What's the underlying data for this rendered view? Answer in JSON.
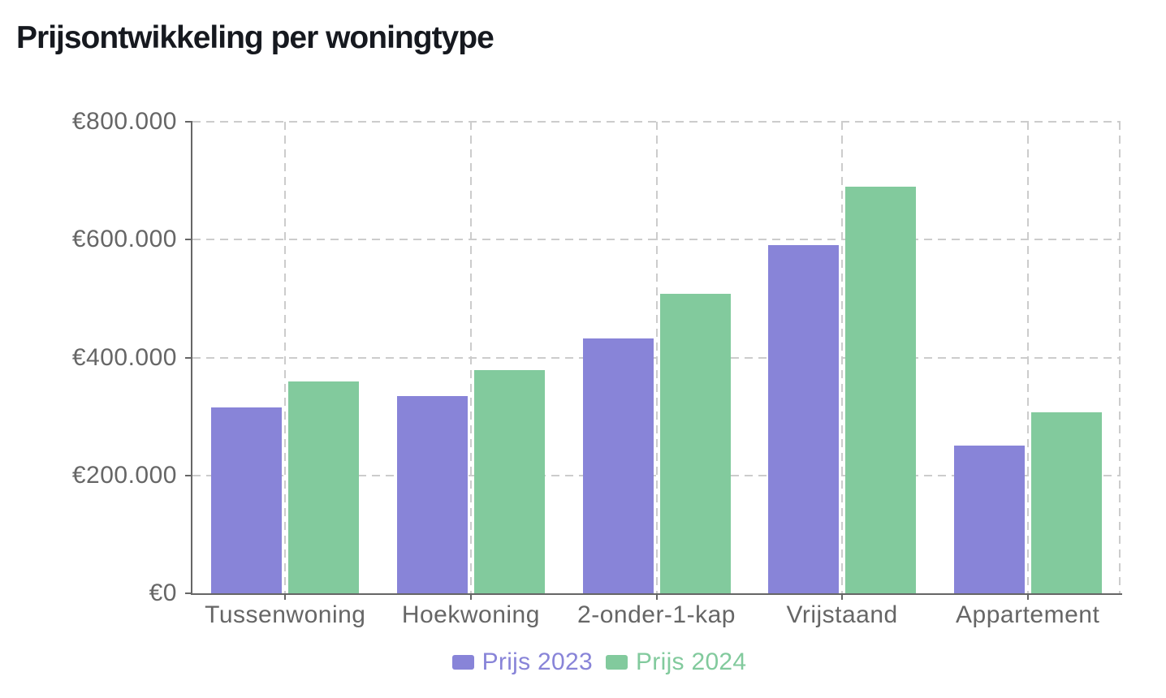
{
  "title": "Prijsontwikkeling per woningtype",
  "chart_data": {
    "type": "bar",
    "categories": [
      "Tussenwoning",
      "Hoekwoning",
      "2-onder-1-kap",
      "Vrijstaand",
      "Appartement"
    ],
    "series": [
      {
        "name": "Prijs 2023",
        "color": "#8884d8",
        "values": [
          316000,
          335000,
          433000,
          591000,
          250000
        ]
      },
      {
        "name": "Prijs 2024",
        "color": "#82ca9d",
        "values": [
          360000,
          379000,
          508000,
          690000,
          307000
        ]
      }
    ],
    "ylim": [
      0,
      800000
    ],
    "ytick_step": 200000,
    "ytick_labels": [
      "€0",
      "€200.000",
      "€400.000",
      "€600.000",
      "€800.000"
    ],
    "grid": {
      "style": "dashed",
      "color": "#cccccc",
      "horizontal": true,
      "vertical": true
    },
    "axis_color": "#666666",
    "label_color": "#666666",
    "legend_position": "bottom"
  }
}
